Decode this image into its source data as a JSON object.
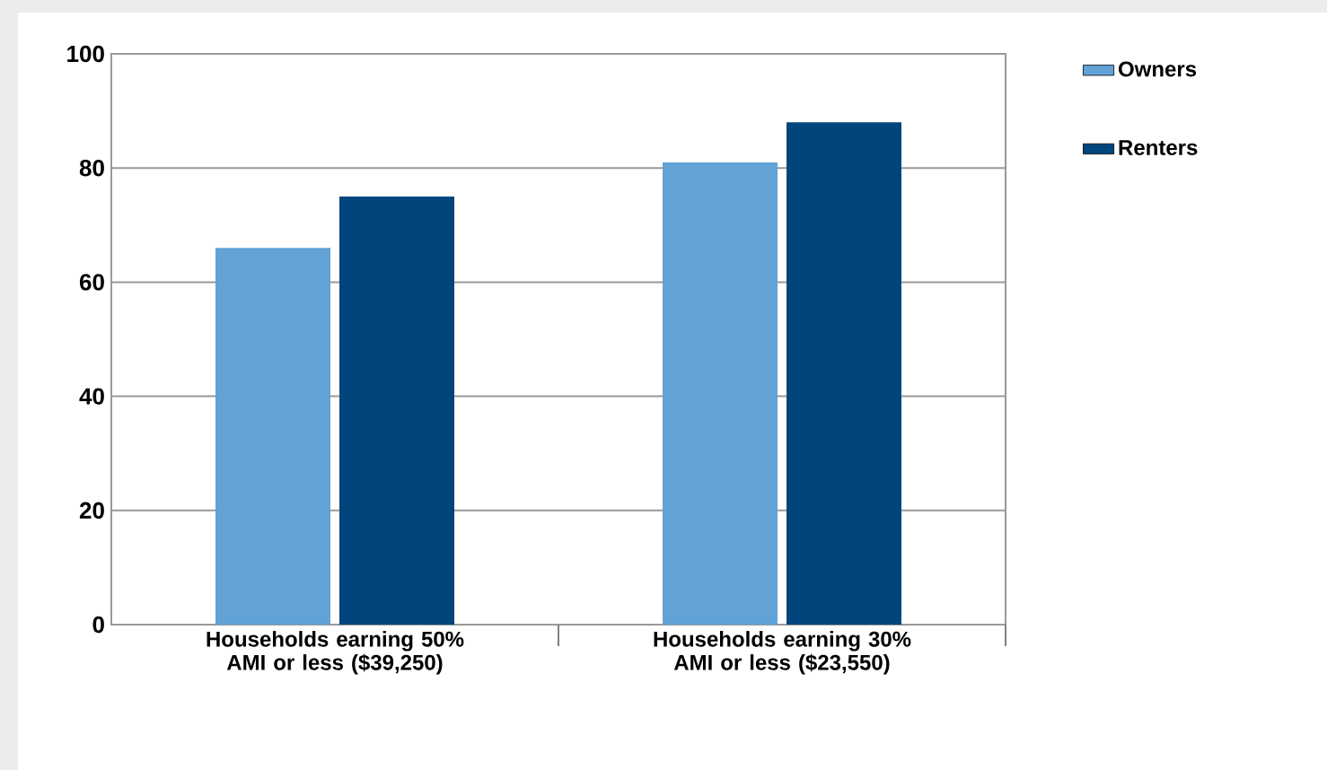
{
  "chart_data": {
    "type": "bar",
    "categories": [
      "Households earning 50% AMI or less ($39,250)",
      "Households earning 30% AMI or less ($23,550)"
    ],
    "series": [
      {
        "name": "Owners",
        "color": "#61a2d7",
        "values": [
          66,
          81
        ]
      },
      {
        "name": "Renters",
        "color": "#00457c",
        "values": [
          75,
          88
        ]
      }
    ],
    "ylim": [
      0,
      100
    ],
    "yticks": [
      0,
      20,
      40,
      60,
      80,
      100
    ],
    "grid": "y",
    "legend": "top right"
  }
}
